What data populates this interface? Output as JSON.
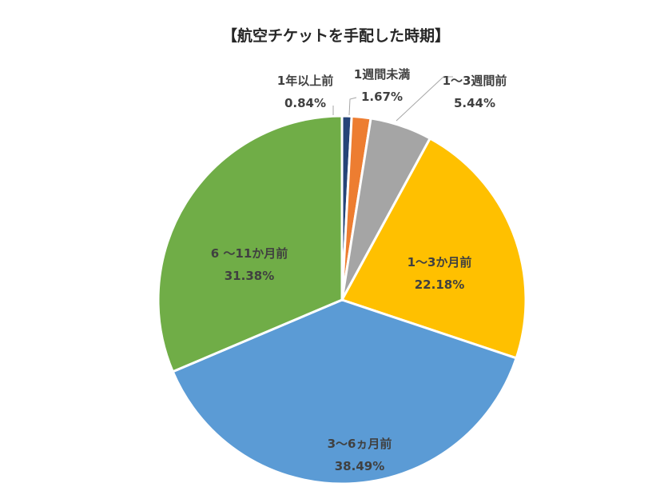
{
  "chart_data": {
    "type": "pie",
    "title": "【航空チケットを手配した時期】",
    "start_angle_deg": 0,
    "direction": "clockwise",
    "slices": [
      {
        "label": "1年以上前",
        "value": 0.84,
        "value_label": "0.84%",
        "color": "#264478"
      },
      {
        "label": "1週間未満",
        "value": 1.67,
        "value_label": "1.67%",
        "color": "#ED7D31"
      },
      {
        "label": "1～3週間前",
        "value": 5.44,
        "value_label": "5.44%",
        "color": "#A5A5A5"
      },
      {
        "label": "1～3か月前",
        "value": 22.18,
        "value_label": "22.18%",
        "color": "#FFC000"
      },
      {
        "label": "3～6ヵ月前",
        "value": 38.49,
        "value_label": "38.49%",
        "color": "#5B9BD5"
      },
      {
        "label": "6 ～11か月前",
        "value": 31.38,
        "value_label": "31.38%",
        "color": "#70AD47"
      }
    ]
  }
}
